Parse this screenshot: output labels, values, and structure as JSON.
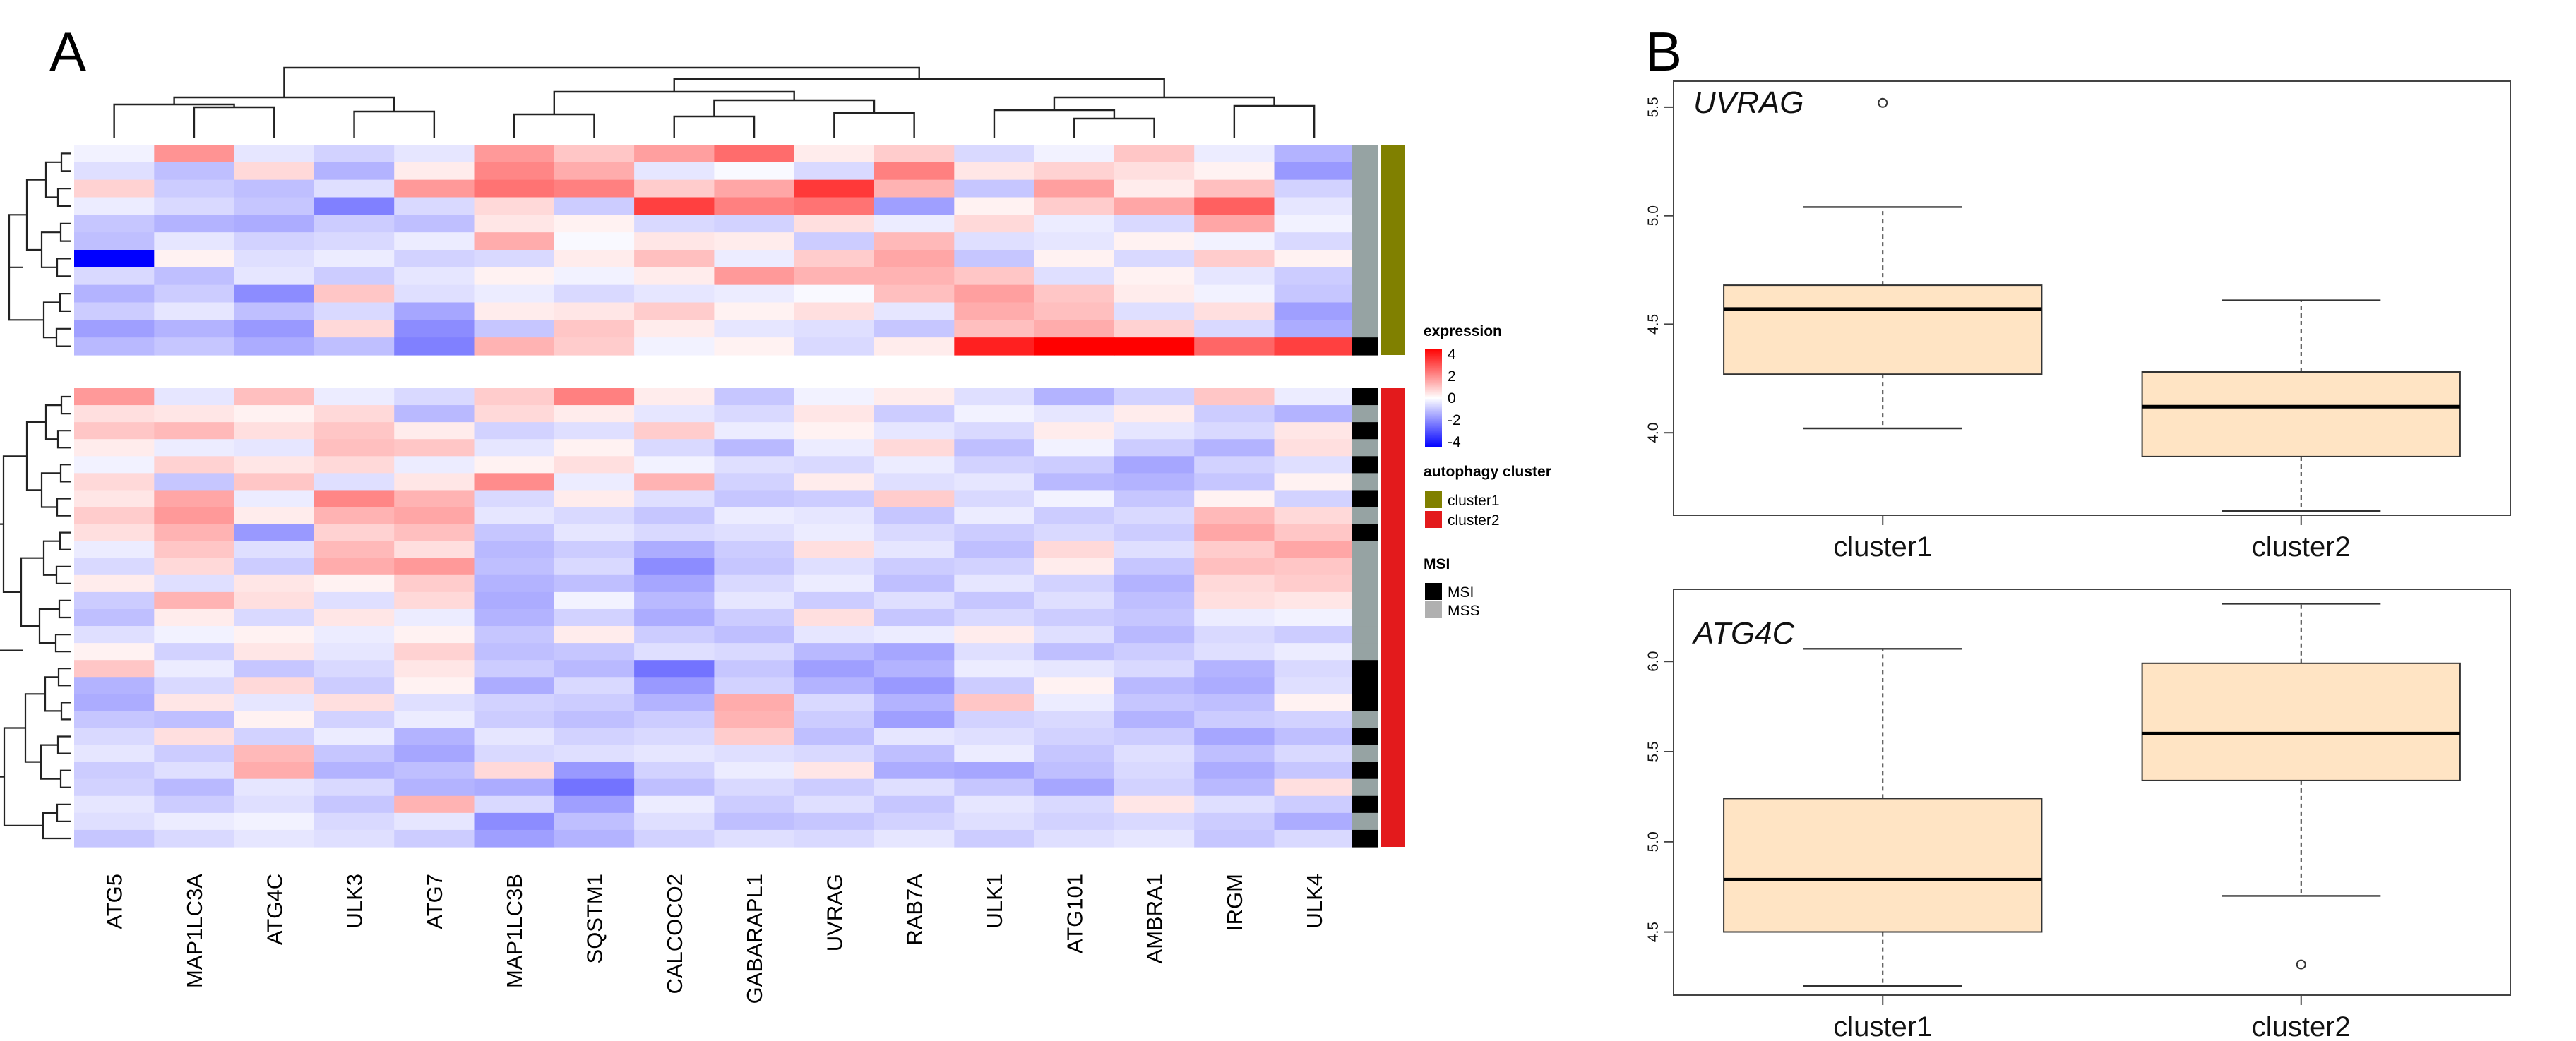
{
  "panels": {
    "a": "A",
    "b": "B"
  },
  "chart_data": [
    {
      "type": "heatmap",
      "title": "",
      "genes": [
        "ATG5",
        "MAP1LC3A",
        "ATG4C",
        "ULK3",
        "ATG7",
        "MAP1LC3B",
        "SQSTM1",
        "CALCOCO2",
        "GABARAPL1",
        "UVRAG",
        "RAB7A",
        "ULK1",
        "ATG101",
        "AMBRA1",
        "IRGM",
        "ULK4"
      ],
      "cluster1_rows": [
        [
          -0.2,
          1.7,
          -0.4,
          -0.7,
          -0.4,
          1.6,
          0.9,
          1.5,
          2.3,
          0.3,
          0.8,
          -0.6,
          -0.2,
          0.9,
          -0.3,
          -1.2
        ],
        [
          -0.5,
          -1.0,
          0.6,
          -1.2,
          0.3,
          1.9,
          1.3,
          -0.4,
          -0.1,
          -0.6,
          2.0,
          0.4,
          0.7,
          0.5,
          0.2,
          -1.6
        ],
        [
          0.7,
          -0.8,
          -1.0,
          -0.5,
          1.6,
          2.2,
          2.0,
          0.8,
          1.4,
          3.1,
          1.2,
          -0.9,
          1.5,
          0.3,
          1.0,
          -0.7
        ],
        [
          -0.3,
          -0.6,
          -0.9,
          -2.0,
          -0.6,
          0.6,
          -0.8,
          3.0,
          2.0,
          2.2,
          -1.5,
          0.2,
          0.8,
          1.4,
          2.5,
          -0.4
        ],
        [
          -0.9,
          -1.2,
          -1.3,
          -0.8,
          -1.0,
          0.4,
          0.2,
          -0.6,
          -0.7,
          0.5,
          -0.3,
          0.6,
          -0.3,
          -0.6,
          1.4,
          -0.2
        ],
        [
          -1.0,
          -0.4,
          -0.7,
          -0.6,
          -0.3,
          1.3,
          -0.1,
          0.4,
          0.3,
          -0.8,
          1.1,
          -0.5,
          -0.4,
          0.2,
          -0.2,
          -0.6
        ],
        [
          -4.0,
          0.2,
          -0.5,
          -0.3,
          -0.7,
          -0.6,
          0.3,
          1.0,
          -0.3,
          0.8,
          1.4,
          -0.9,
          0.2,
          -0.6,
          0.8,
          0.2
        ],
        [
          -0.6,
          -1.0,
          -0.4,
          -0.8,
          -0.4,
          0.2,
          -0.2,
          0.3,
          1.6,
          1.2,
          1.2,
          0.9,
          -0.5,
          0.2,
          -0.4,
          -0.8
        ],
        [
          -1.2,
          -0.8,
          -1.8,
          0.9,
          -0.5,
          -0.3,
          -0.6,
          -0.4,
          -0.3,
          -0.1,
          1.0,
          1.5,
          0.9,
          0.3,
          -0.2,
          -0.9
        ],
        [
          -0.8,
          -0.4,
          -1.0,
          -0.6,
          -1.4,
          0.3,
          0.4,
          0.8,
          0.2,
          0.5,
          -0.4,
          1.3,
          1.0,
          -0.5,
          0.5,
          -1.5
        ],
        [
          -1.5,
          -1.2,
          -1.6,
          0.6,
          -1.8,
          -0.9,
          0.9,
          0.3,
          -0.4,
          -0.5,
          -0.9,
          1.0,
          1.3,
          0.7,
          -0.6,
          -1.3
        ],
        [
          -1.1,
          -0.9,
          -1.3,
          -1.0,
          -2.0,
          1.2,
          0.8,
          -0.2,
          0.2,
          -0.6,
          0.3,
          3.5,
          4.0,
          4.0,
          2.4,
          3.0
        ]
      ],
      "cluster2_rows": [
        [
          1.6,
          -0.4,
          1.0,
          -0.3,
          -0.6,
          0.8,
          2.0,
          0.3,
          -0.9,
          -0.2,
          0.3,
          -0.5,
          -1.2,
          -0.7,
          0.9,
          -0.3
        ],
        [
          0.5,
          0.4,
          0.2,
          0.6,
          -1.1,
          0.6,
          0.3,
          -0.4,
          -0.6,
          0.4,
          -0.8,
          -0.2,
          -0.4,
          0.3,
          -0.8,
          -1.2
        ],
        [
          0.9,
          1.1,
          0.5,
          0.9,
          0.3,
          -0.7,
          -0.5,
          0.8,
          -0.3,
          0.2,
          -0.4,
          -0.6,
          0.3,
          -0.4,
          -0.6,
          0.4
        ],
        [
          0.3,
          -0.3,
          -0.4,
          1.0,
          0.9,
          -0.4,
          0.2,
          -0.6,
          -1.1,
          -0.3,
          0.6,
          -1.0,
          -0.2,
          -0.8,
          -1.2,
          0.5
        ],
        [
          -0.2,
          0.7,
          0.4,
          0.6,
          -0.3,
          0.2,
          0.5,
          -0.2,
          -0.5,
          -0.6,
          -0.3,
          -0.7,
          -0.8,
          -1.4,
          -0.7,
          -0.5
        ],
        [
          0.6,
          -0.9,
          0.9,
          -0.5,
          0.4,
          1.8,
          -0.3,
          1.2,
          -0.7,
          0.3,
          -0.5,
          -0.4,
          -1.1,
          -1.2,
          -0.9,
          0.2
        ],
        [
          0.4,
          1.4,
          -0.3,
          1.9,
          1.2,
          -0.6,
          0.3,
          -0.5,
          -0.9,
          -0.8,
          0.8,
          -0.6,
          -0.2,
          -0.9,
          0.2,
          -0.7
        ],
        [
          0.8,
          1.6,
          0.3,
          1.2,
          1.4,
          -0.4,
          -0.6,
          -0.9,
          -0.3,
          -0.4,
          -0.9,
          -0.3,
          -0.8,
          -0.6,
          1.1,
          0.6
        ],
        [
          0.5,
          1.2,
          -1.6,
          0.7,
          1.0,
          -0.9,
          -0.4,
          -0.6,
          -0.5,
          -0.3,
          -0.6,
          -0.8,
          -0.6,
          -0.8,
          1.4,
          0.9
        ],
        [
          -0.3,
          0.9,
          -0.5,
          1.1,
          0.5,
          -1.1,
          -0.8,
          -1.3,
          -0.8,
          0.5,
          -0.4,
          -1.0,
          0.6,
          -0.5,
          0.8,
          1.4
        ],
        [
          -0.6,
          0.6,
          -0.8,
          1.3,
          1.6,
          -1.0,
          -0.6,
          -1.8,
          -0.9,
          -0.5,
          -0.8,
          -0.7,
          0.3,
          -0.9,
          1.0,
          0.9
        ],
        [
          0.3,
          -0.5,
          0.4,
          0.2,
          0.8,
          -1.2,
          -1.0,
          -1.4,
          -0.6,
          -0.3,
          -1.0,
          -0.4,
          -0.7,
          -1.2,
          0.6,
          0.8
        ],
        [
          -0.8,
          1.2,
          0.5,
          -0.5,
          0.6,
          -1.3,
          -0.2,
          -1.1,
          -0.4,
          -0.8,
          -0.5,
          -0.9,
          -0.5,
          -1.0,
          0.5,
          0.4
        ],
        [
          -1.0,
          0.3,
          -0.6,
          0.4,
          -0.3,
          -1.2,
          -0.7,
          -1.3,
          -0.8,
          0.5,
          -0.9,
          -0.6,
          -0.8,
          -0.9,
          -0.3,
          -0.2
        ],
        [
          -0.5,
          -0.2,
          0.2,
          -0.3,
          0.2,
          -0.9,
          0.3,
          -0.8,
          -1.0,
          -0.4,
          -0.3,
          0.3,
          -0.5,
          -1.1,
          -0.6,
          -0.8
        ],
        [
          0.2,
          -0.7,
          0.4,
          -0.4,
          0.7,
          -1.0,
          -0.9,
          -0.5,
          -0.6,
          -1.1,
          -1.4,
          -0.5,
          -1.0,
          -0.8,
          -0.5,
          -0.3
        ],
        [
          0.9,
          -0.3,
          -0.9,
          -0.6,
          0.4,
          -0.8,
          -1.1,
          -2.2,
          -0.9,
          -1.5,
          -1.2,
          -0.3,
          -0.4,
          -0.6,
          -1.2,
          -0.6
        ],
        [
          -1.2,
          -0.6,
          0.6,
          -0.8,
          0.2,
          -1.3,
          -0.6,
          -1.6,
          -0.7,
          -1.2,
          -1.6,
          -0.8,
          0.2,
          -1.1,
          -1.3,
          -0.5
        ],
        [
          -1.3,
          0.4,
          -0.4,
          0.5,
          -0.5,
          -0.7,
          -0.8,
          -1.2,
          1.3,
          -0.6,
          -1.2,
          0.9,
          -0.3,
          -0.9,
          -1.0,
          0.2
        ],
        [
          -0.9,
          -1.0,
          0.2,
          -0.7,
          -0.3,
          -0.8,
          -1.0,
          -0.8,
          1.2,
          -0.8,
          -1.5,
          -0.7,
          -0.6,
          -1.2,
          -0.8,
          -0.7
        ],
        [
          -0.6,
          0.5,
          -0.7,
          -0.3,
          -1.2,
          -0.4,
          -0.7,
          -0.6,
          0.8,
          -1.0,
          -0.4,
          -0.5,
          -0.7,
          -0.8,
          -1.4,
          -1.0
        ],
        [
          -0.4,
          -0.8,
          1.1,
          -0.9,
          -1.4,
          -0.6,
          -0.5,
          -0.4,
          -0.5,
          -0.6,
          -1.0,
          -0.3,
          -0.9,
          -0.5,
          -1.0,
          -0.6
        ],
        [
          -0.8,
          -0.5,
          1.3,
          -1.2,
          -1.0,
          0.6,
          -1.6,
          -0.7,
          -0.3,
          0.4,
          -1.3,
          -1.4,
          -1.0,
          -0.6,
          -1.3,
          -0.9
        ],
        [
          -0.7,
          -1.1,
          -0.4,
          -0.6,
          -1.2,
          -1.3,
          -2.2,
          -1.0,
          -0.6,
          -0.8,
          -0.5,
          -0.9,
          -1.4,
          -0.7,
          -1.1,
          0.5
        ],
        [
          -0.4,
          -0.8,
          -0.5,
          -0.9,
          1.2,
          -0.6,
          -1.5,
          -0.3,
          -0.8,
          -0.5,
          -0.9,
          -0.4,
          -0.6,
          0.4,
          -0.5,
          -0.8
        ],
        [
          -0.5,
          -0.3,
          -0.2,
          -0.6,
          -0.4,
          -1.8,
          -1.0,
          -0.5,
          -1.0,
          -0.9,
          -0.7,
          -0.5,
          -0.7,
          -0.6,
          -0.8,
          -1.3
        ],
        [
          -0.9,
          -0.6,
          -0.4,
          -0.5,
          -0.8,
          -1.5,
          -1.2,
          -0.7,
          -0.5,
          -0.6,
          -0.4,
          -0.8,
          -0.5,
          -0.4,
          -0.9,
          -0.6
        ]
      ],
      "msi_cluster1": [
        "MSS",
        "MSS",
        "MSS",
        "MSS",
        "MSS",
        "MSS",
        "MSS",
        "MSS",
        "MSS",
        "MSS",
        "MSS",
        "MSI"
      ],
      "msi_cluster2": [
        "MSI",
        "MSS",
        "MSI",
        "MSS",
        "MSI",
        "MSS",
        "MSI",
        "MSS",
        "MSI",
        "MSS",
        "MSS",
        "MSS",
        "MSS",
        "MSS",
        "MSS",
        "MSS",
        "MSI",
        "MSI",
        "MSI",
        "MSS",
        "MSI",
        "MSS",
        "MSI",
        "MSS",
        "MSI",
        "MSS",
        "MSI"
      ],
      "legend": {
        "expression_title": "expression",
        "expression_ticks": [
          "4",
          "2",
          "0",
          "-2",
          "-4"
        ],
        "cluster_title": "autophagy  cluster",
        "cluster_items": [
          {
            "label": "cluster1",
            "color": "#808000"
          },
          {
            "label": "cluster2",
            "color": "#e31a1c"
          }
        ],
        "msi_title": "MSI",
        "msi_items": [
          {
            "label": "MSI",
            "color": "#000000"
          },
          {
            "label": "MSS",
            "color": "#b0b0b0"
          }
        ]
      },
      "colors": {
        "high": "#ff0000",
        "mid": "#ffffff",
        "low": "#0000ff",
        "cluster1": "#808000",
        "cluster2": "#e31a1c",
        "msi": "#000000",
        "mss": "#96a3a3"
      }
    },
    {
      "type": "box",
      "title": "UVRAG",
      "categories": [
        "cluster1",
        "cluster2"
      ],
      "ylim": [
        3.62,
        5.62
      ],
      "yticks": [
        4.0,
        4.5,
        5.0,
        5.5
      ],
      "ytick_labels": [
        "4.0",
        "4.5",
        "5.0",
        "5.5"
      ],
      "boxes": [
        {
          "min": 4.02,
          "q1": 4.27,
          "median": 4.57,
          "q3": 4.68,
          "max": 5.04,
          "outliers": [
            5.52
          ]
        },
        {
          "min": 3.64,
          "q1": 3.89,
          "median": 4.12,
          "q3": 4.28,
          "max": 4.61,
          "outliers": []
        }
      ],
      "fill": "#ffe4c4"
    },
    {
      "type": "box",
      "title": "ATG4C",
      "categories": [
        "cluster1",
        "cluster2"
      ],
      "ylim": [
        4.15,
        6.4
      ],
      "yticks": [
        4.5,
        5.0,
        5.5,
        6.0
      ],
      "ytick_labels": [
        "4.5",
        "5.0",
        "5.5",
        "6.0"
      ],
      "boxes": [
        {
          "min": 4.2,
          "q1": 4.5,
          "median": 4.79,
          "q3": 5.24,
          "max": 6.07,
          "outliers": []
        },
        {
          "min": 4.7,
          "q1": 5.34,
          "median": 5.6,
          "q3": 5.99,
          "max": 6.32,
          "outliers": [
            4.32
          ]
        }
      ],
      "fill": "#ffe4c4"
    }
  ]
}
